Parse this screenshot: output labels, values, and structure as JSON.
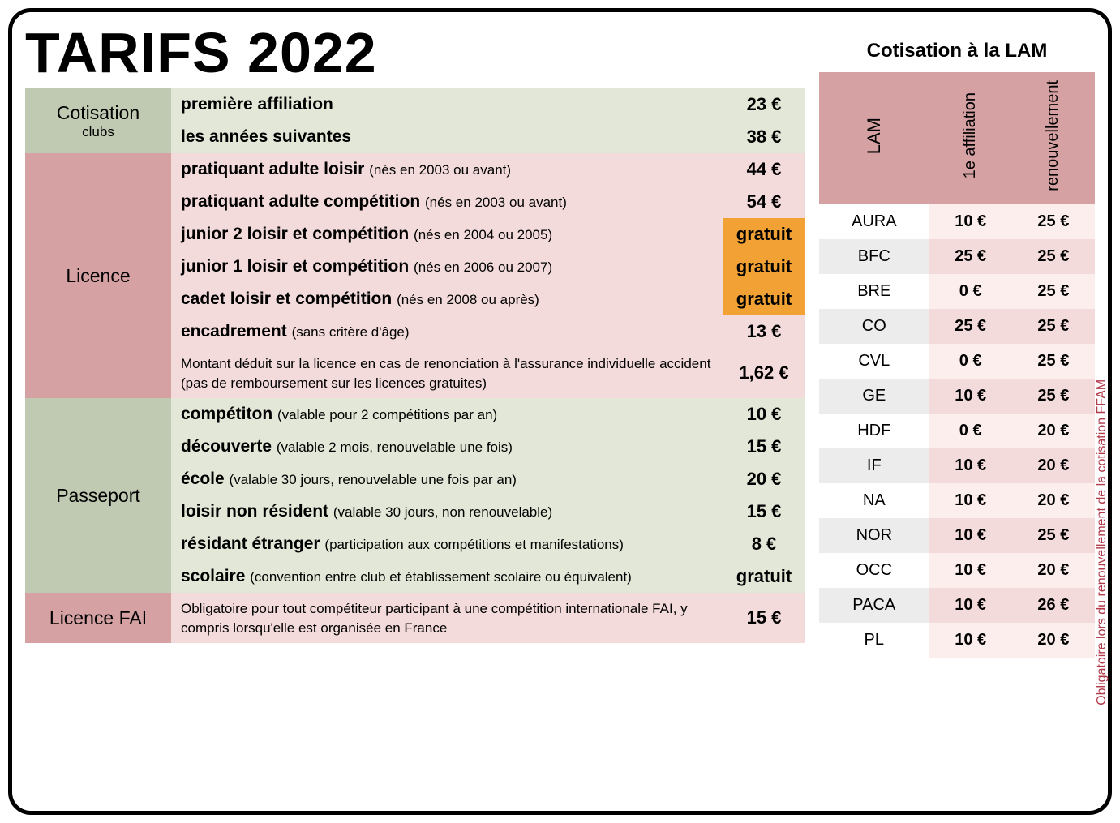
{
  "title": "TARIFS 2022",
  "colors": {
    "sage": "#c0c9b1",
    "cream": "#e3e7d7",
    "rose": "#d5a1a3",
    "pink": "#f4dbdb",
    "orange": "#f2a235",
    "white": "#ffffff",
    "ltgrey": "#ececec",
    "ltpink": "#fbeeed",
    "sidenote": "#b03a4a",
    "black": "#000000"
  },
  "sections": {
    "cotisation": {
      "label": "Cotisation",
      "sublabel": "clubs",
      "cat_bg": "sage",
      "row_bg": "cream",
      "rows": [
        {
          "bold": "première affiliation",
          "note": "",
          "price": "23 €",
          "price_bg": "cream"
        },
        {
          "bold": "les années suivantes",
          "note": "",
          "price": "38 €",
          "price_bg": "cream"
        }
      ]
    },
    "licence": {
      "label": "Licence",
      "cat_bg": "rose",
      "row_bg": "pink",
      "rows": [
        {
          "bold": "pratiquant adulte loisir",
          "note": "(nés en 2003 ou avant)",
          "price": "44 €",
          "price_bg": "pink"
        },
        {
          "bold": "pratiquant adulte compétition",
          "note": "(nés en 2003 ou avant)",
          "price": "54 €",
          "price_bg": "pink"
        },
        {
          "bold": "junior 2 loisir et compétition",
          "note": "(nés en 2004 ou 2005)",
          "price": "gratuit",
          "price_bg": "orange"
        },
        {
          "bold": "junior 1 loisir et compétition",
          "note": "(nés en 2006 ou 2007)",
          "price": "gratuit",
          "price_bg": "orange"
        },
        {
          "bold": "cadet loisir et compétition",
          "note": "(nés en 2008 ou après)",
          "price": "gratuit",
          "price_bg": "orange"
        },
        {
          "bold": "encadrement",
          "note": "(sans critère d'âge)",
          "price": "13 €",
          "price_bg": "pink"
        },
        {
          "small": "Montant déduit sur la licence en cas de renonciation à l'assurance individuelle accident (pas de remboursement sur les licences gratuites)",
          "price": "1,62 €",
          "price_bg": "pink"
        }
      ]
    },
    "passeport": {
      "label": "Passeport",
      "cat_bg": "sage",
      "row_bg": "cream",
      "rows": [
        {
          "bold": "compétiton",
          "note": "(valable pour 2 compétitions par an)",
          "price": "10 €",
          "price_bg": "cream"
        },
        {
          "bold": "découverte",
          "note": "(valable 2 mois, renouvelable une fois)",
          "price": "15 €",
          "price_bg": "cream"
        },
        {
          "bold": "école",
          "note": "(valable 30 jours, renouvelable une fois par an)",
          "price": "20 €",
          "price_bg": "cream"
        },
        {
          "bold": "loisir non résident",
          "note": "(valable 30 jours, non renouvelable)",
          "price": "15 €",
          "price_bg": "cream"
        },
        {
          "bold": "résidant étranger",
          "note": "(participation aux compétitions et manifestations)",
          "price": "8 €",
          "price_bg": "cream"
        },
        {
          "bold": "scolaire",
          "note": "(convention entre club et établissement scolaire ou équivalent)",
          "price": "gratuit",
          "price_bg": "cream"
        }
      ]
    },
    "fai": {
      "label": "Licence FAI",
      "cat_bg": "rose",
      "row_bg": "pink",
      "rows": [
        {
          "small": "Obligatoire pour tout compétiteur participant à une compétition internationale FAI, y compris lorsqu'elle est organisée en France",
          "price": "15 €",
          "price_bg": "pink"
        }
      ]
    }
  },
  "lam": {
    "title": "Cotisation à la LAM",
    "headers": {
      "col1": "LAM",
      "col2": "1e affiliation",
      "col3": "renouvellement"
    },
    "sidenote": "Obligatoire lors du renouvellement de la cotisation FFAM",
    "rows": [
      {
        "region": "AURA",
        "aff": "10 €",
        "ren": "25 €"
      },
      {
        "region": "BFC",
        "aff": "25 €",
        "ren": "25 €"
      },
      {
        "region": "BRE",
        "aff": "0 €",
        "ren": "25 €"
      },
      {
        "region": "CO",
        "aff": "25 €",
        "ren": "25 €"
      },
      {
        "region": "CVL",
        "aff": "0 €",
        "ren": "25 €"
      },
      {
        "region": "GE",
        "aff": "10 €",
        "ren": "25 €"
      },
      {
        "region": "HDF",
        "aff": "0 €",
        "ren": "20 €"
      },
      {
        "region": "IF",
        "aff": "10 €",
        "ren": "20 €"
      },
      {
        "region": "NA",
        "aff": "10 €",
        "ren": "20 €"
      },
      {
        "region": "NOR",
        "aff": "10 €",
        "ren": "25 €"
      },
      {
        "region": "OCC",
        "aff": "10 €",
        "ren": "20 €"
      },
      {
        "region": "PACA",
        "aff": "10 €",
        "ren": "26 €"
      },
      {
        "region": "PL",
        "aff": "10 €",
        "ren": "20 €"
      }
    ],
    "row_bgs": {
      "region": [
        "white",
        "ltgrey"
      ],
      "values": [
        "ltpink",
        "pink"
      ]
    }
  }
}
